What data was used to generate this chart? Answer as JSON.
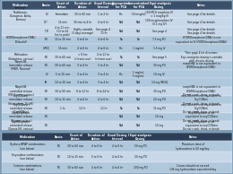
{
  "title": "Resus Medication Dosing Of Obese Patients Opiate",
  "header_bg": "#3A506B",
  "header_text": "#FFFFFF",
  "row_bg_light": "#C8D8E8",
  "row_bg_mid": "#B0C4D8",
  "row_bg_dark": "#98AEBF",
  "section2_header_bg": "#2C3E55",
  "fig_bg": "#7A9BB5",
  "header1": [
    "Medication",
    "Route",
    "Onset of\nAction",
    "Duration of\nAction",
    "Usual Dosing\nInterval",
    "Appropriate\nfor PCA",
    "Concentration\nfor PCA",
    "I Equi-analgesic\nDosing",
    "Notes"
  ],
  "cws1": [
    0.165,
    0.055,
    0.085,
    0.09,
    0.09,
    0.065,
    0.085,
    0.095,
    0.27
  ],
  "rows": [
    [
      "Fentanyl\n(Sublimaze,\nDuragesic, Actiq,\nFentora)",
      "IV",
      "Immediate",
      "30 to 60 min",
      "1 to 2 hr",
      "Yes",
      "50 mcg/mL",
      "100 MCG morphine IV\n= 1 mcg/kg IV",
      "See page 4 for details"
    ],
    [
      "",
      "SL*",
      "15 min",
      "30 min to 4 hr",
      "4 to 6 hr",
      "N/A",
      "N/A",
      "100 mcg/morphine IV\n(0.1 mg IV)",
      "See page 4 for details"
    ],
    [
      "",
      "TD",
      "4 to 11 min\n(13 to 24\nhrs to peak)",
      "Highly variable\n(3 days average)",
      "See page 4\n72 hr",
      "N/A",
      "N/A",
      "See page 4",
      "See page 4 for details\nSee page 4 for details"
    ],
    [
      "HYDROmorphone(ORAl)\n(Dilaudid)",
      "PO",
      "15 to 30 min",
      "4 to 6 hr",
      "4 to 6 hr",
      "No",
      "No",
      "7.5 mg PO",
      "HYDROmorphone(ORAl) is not\nequivalent to IV HYDROmorphone(ORAl)"
    ],
    [
      "",
      "IV/SQ",
      "15 min",
      "4 to 6 hr",
      "4 to 6 hr",
      "Yes",
      "1 mg/mL",
      "1.5 mg IV",
      ""
    ],
    [
      "Methadone\n(Dolophine, various)",
      "PO",
      "30 to 60 min",
      "> 8 hrs\n(chronic use)",
      "4 to 12 hr\n(chronic use)",
      "No",
      "No",
      "See page 5",
      "*See page 4 for directions\nEqui-analgesic dosing is variable\nwith chronic dosing"
    ],
    [
      "MorphINE\nimmediate release\n(MSIR, Roxanol)",
      "PO",
      "30 to 60 min",
      "3 to 4 hr",
      "3 to 4 hr",
      "N/A",
      "N/A",
      "30 mg PO",
      "morphINE is not equivalent to\nHYDROmorphone(ORAl)"
    ],
    [
      "",
      "IV",
      "5 to 10 min",
      "3 to 4 hr",
      "3 to 4 hr",
      "Yes",
      "1 mg/mL\n5 mg/mL",
      "10 mg IV",
      ""
    ],
    [
      "",
      "IM",
      "10 to 30 min",
      "3 to 4 hr",
      "3 to 4 hr",
      "N/A",
      "N/A",
      "10 mg IM/SQ",
      ""
    ],
    [
      "MorphINE\ncontrolled release\n(MS-Contin, various)",
      "PO",
      "30 to 90 min",
      "8 to 12 hr",
      "8 to 24 hr",
      "N/A",
      "N/A",
      "30 mg PO",
      "morphINE is not equivalent to\nHYDROmorphone(ORAl)\nDo not crush, chew, or break"
    ],
    [
      "OxyCODone\nimmediate release\n(Roxicodone, OxylR)",
      "PO",
      "10 to 15 min",
      "4 to 6 hr",
      "4 to 6 hr",
      "N/A",
      "N/A",
      "20 mg PO",
      "oxyCODone is not equivalent to\nOxyCONtin\nDo not crush, chew, or break"
    ],
    [
      "OxyCODone\ncontrolled release\n(OxyCONtin)",
      "PO",
      "1 hr",
      "12 hr",
      "12 hr",
      "No",
      "No",
      "15 mg PO",
      "oxyCODone is not equivalent to\nOxyCONtin\nDo not crush, chew, or break"
    ],
    [
      "OxyMORphone\nimmediate release\n(Opana, various)",
      "PO",
      "",
      "",
      "",
      "N/A",
      "N/A",
      "10 mg",
      "OxyMORphone is not\nequivalent to oxyCODone\nDo not crush, chew, or break"
    ],
    [
      "OxyMORphone\nextended release\n(Opana ER, various)",
      "PO",
      "",
      "",
      "",
      "N/A",
      "N/A",
      "10 mg",
      "OxyMORphone is not\nequivalent to oxyCODone\nDo not crush, chew, or break"
    ]
  ],
  "row_group_colors": [
    "#C8D8E8",
    "#C8D8E8",
    "#C8D8E8",
    "#B0C8DC",
    "#B0C8DC",
    "#C8D8E8",
    "#B0C8DC",
    "#B0C8DC",
    "#B0C8DC",
    "#C8D8E8",
    "#B0C8DC",
    "#C8D8E8",
    "#B0C8DC",
    "#C8D8E8"
  ],
  "header2": [
    "Medication",
    "Route",
    "Onset of\nAction",
    "Duration of\nAction",
    "Usual Dosing\nInterval",
    "I Equi-analgesic\nDosing",
    "Notes"
  ],
  "cws2": [
    0.22,
    0.055,
    0.09,
    0.09,
    0.09,
    0.11,
    0.345
  ],
  "rows2": [
    [
      "Hydroco/APAP combinations\n(see below)",
      "PO",
      "30 to 60 min",
      "4 to 6 hr",
      "4 to 6 hr",
      "50 mg PO",
      "Maximum dose of\nhydrocodone is 50 mg/day"
    ],
    [
      "Oxycodone combinations\n(see below)",
      "PO",
      "10 to 15 min",
      "5 to 6 hr",
      "4 to 6 hr",
      "20 mg PO",
      ""
    ],
    [
      "Codeine combinations\n(see below)",
      "PO",
      "30 to 60 min",
      "4 to 6 hr",
      "4 to 6 hr",
      "200 mg PO",
      "Cream should not exceed\n145 mg hydrocodone equivalent/day"
    ]
  ],
  "row2_colors": [
    "#B0C8DC",
    "#C8D8E8",
    "#B0C8DC"
  ]
}
